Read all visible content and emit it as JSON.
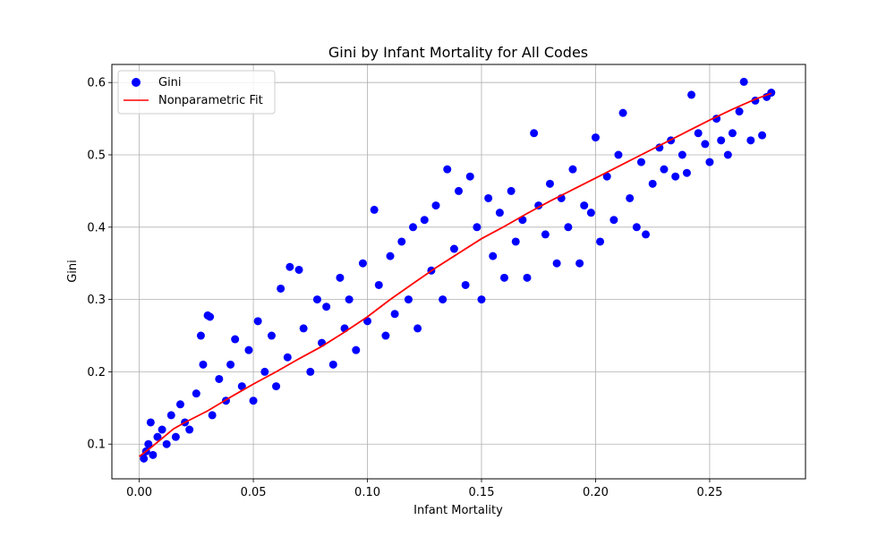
{
  "chart_data": {
    "type": "scatter",
    "title": "Gini by Infant Mortality for All Codes",
    "xlabel": "Infant Mortality",
    "ylabel": "Gini",
    "xlim": [
      -0.012,
      0.292
    ],
    "ylim": [
      0.052,
      0.625
    ],
    "xticks": [
      0.0,
      0.05,
      0.1,
      0.15,
      0.2,
      0.25
    ],
    "xtick_labels": [
      "0.00",
      "0.05",
      "0.10",
      "0.15",
      "0.20",
      "0.25"
    ],
    "yticks": [
      0.1,
      0.2,
      0.3,
      0.4,
      0.5,
      0.6
    ],
    "ytick_labels": [
      "0.1",
      "0.2",
      "0.3",
      "0.4",
      "0.5",
      "0.6"
    ],
    "grid": true,
    "legend_position": "top-left",
    "series": [
      {
        "name": "Gini",
        "kind": "scatter",
        "color": "#0000ff",
        "points": [
          [
            0.002,
            0.08
          ],
          [
            0.003,
            0.09
          ],
          [
            0.004,
            0.1
          ],
          [
            0.005,
            0.13
          ],
          [
            0.006,
            0.085
          ],
          [
            0.008,
            0.11
          ],
          [
            0.01,
            0.12
          ],
          [
            0.012,
            0.1
          ],
          [
            0.014,
            0.14
          ],
          [
            0.016,
            0.11
          ],
          [
            0.018,
            0.155
          ],
          [
            0.02,
            0.13
          ],
          [
            0.022,
            0.12
          ],
          [
            0.025,
            0.17
          ],
          [
            0.027,
            0.25
          ],
          [
            0.028,
            0.21
          ],
          [
            0.03,
            0.278
          ],
          [
            0.031,
            0.276
          ],
          [
            0.032,
            0.14
          ],
          [
            0.035,
            0.19
          ],
          [
            0.038,
            0.16
          ],
          [
            0.04,
            0.21
          ],
          [
            0.042,
            0.245
          ],
          [
            0.045,
            0.18
          ],
          [
            0.048,
            0.23
          ],
          [
            0.05,
            0.16
          ],
          [
            0.052,
            0.27
          ],
          [
            0.055,
            0.2
          ],
          [
            0.058,
            0.25
          ],
          [
            0.06,
            0.18
          ],
          [
            0.062,
            0.315
          ],
          [
            0.065,
            0.22
          ],
          [
            0.066,
            0.345
          ],
          [
            0.07,
            0.341
          ],
          [
            0.072,
            0.26
          ],
          [
            0.075,
            0.2
          ],
          [
            0.078,
            0.3
          ],
          [
            0.08,
            0.24
          ],
          [
            0.082,
            0.29
          ],
          [
            0.085,
            0.21
          ],
          [
            0.088,
            0.33
          ],
          [
            0.09,
            0.26
          ],
          [
            0.092,
            0.3
          ],
          [
            0.095,
            0.23
          ],
          [
            0.098,
            0.35
          ],
          [
            0.1,
            0.27
          ],
          [
            0.103,
            0.424
          ],
          [
            0.105,
            0.32
          ],
          [
            0.108,
            0.25
          ],
          [
            0.11,
            0.36
          ],
          [
            0.112,
            0.28
          ],
          [
            0.115,
            0.38
          ],
          [
            0.118,
            0.3
          ],
          [
            0.12,
            0.4
          ],
          [
            0.122,
            0.26
          ],
          [
            0.125,
            0.41
          ],
          [
            0.128,
            0.34
          ],
          [
            0.13,
            0.43
          ],
          [
            0.133,
            0.3
          ],
          [
            0.135,
            0.48
          ],
          [
            0.138,
            0.37
          ],
          [
            0.14,
            0.45
          ],
          [
            0.143,
            0.32
          ],
          [
            0.145,
            0.47
          ],
          [
            0.148,
            0.4
          ],
          [
            0.15,
            0.3
          ],
          [
            0.153,
            0.44
          ],
          [
            0.155,
            0.36
          ],
          [
            0.158,
            0.42
          ],
          [
            0.16,
            0.33
          ],
          [
            0.163,
            0.45
          ],
          [
            0.165,
            0.38
          ],
          [
            0.168,
            0.41
          ],
          [
            0.17,
            0.33
          ],
          [
            0.173,
            0.53
          ],
          [
            0.175,
            0.43
          ],
          [
            0.178,
            0.39
          ],
          [
            0.18,
            0.46
          ],
          [
            0.183,
            0.35
          ],
          [
            0.185,
            0.44
          ],
          [
            0.188,
            0.4
          ],
          [
            0.19,
            0.48
          ],
          [
            0.193,
            0.35
          ],
          [
            0.195,
            0.43
          ],
          [
            0.198,
            0.42
          ],
          [
            0.2,
            0.524
          ],
          [
            0.202,
            0.38
          ],
          [
            0.205,
            0.47
          ],
          [
            0.208,
            0.41
          ],
          [
            0.21,
            0.5
          ],
          [
            0.212,
            0.558
          ],
          [
            0.215,
            0.44
          ],
          [
            0.218,
            0.4
          ],
          [
            0.22,
            0.49
          ],
          [
            0.222,
            0.39
          ],
          [
            0.225,
            0.46
          ],
          [
            0.228,
            0.51
          ],
          [
            0.23,
            0.48
          ],
          [
            0.233,
            0.52
          ],
          [
            0.235,
            0.47
          ],
          [
            0.238,
            0.5
          ],
          [
            0.24,
            0.475
          ],
          [
            0.242,
            0.583
          ],
          [
            0.245,
            0.53
          ],
          [
            0.248,
            0.515
          ],
          [
            0.25,
            0.49
          ],
          [
            0.253,
            0.55
          ],
          [
            0.255,
            0.52
          ],
          [
            0.258,
            0.5
          ],
          [
            0.26,
            0.53
          ],
          [
            0.263,
            0.56
          ],
          [
            0.265,
            0.601
          ],
          [
            0.268,
            0.52
          ],
          [
            0.27,
            0.575
          ],
          [
            0.273,
            0.527
          ],
          [
            0.275,
            0.58
          ],
          [
            0.277,
            0.586
          ]
        ]
      },
      {
        "name": "Nonparametric Fit",
        "kind": "line",
        "color": "#ff0000",
        "points": [
          [
            0.0,
            0.083
          ],
          [
            0.005,
            0.095
          ],
          [
            0.01,
            0.108
          ],
          [
            0.015,
            0.121
          ],
          [
            0.02,
            0.13
          ],
          [
            0.03,
            0.146
          ],
          [
            0.04,
            0.165
          ],
          [
            0.05,
            0.183
          ],
          [
            0.06,
            0.2
          ],
          [
            0.07,
            0.218
          ],
          [
            0.08,
            0.235
          ],
          [
            0.09,
            0.255
          ],
          [
            0.1,
            0.276
          ],
          [
            0.11,
            0.3
          ],
          [
            0.12,
            0.322
          ],
          [
            0.13,
            0.344
          ],
          [
            0.14,
            0.364
          ],
          [
            0.15,
            0.384
          ],
          [
            0.16,
            0.401
          ],
          [
            0.17,
            0.419
          ],
          [
            0.18,
            0.436
          ],
          [
            0.19,
            0.452
          ],
          [
            0.2,
            0.468
          ],
          [
            0.21,
            0.484
          ],
          [
            0.22,
            0.5
          ],
          [
            0.23,
            0.516
          ],
          [
            0.24,
            0.532
          ],
          [
            0.25,
            0.548
          ],
          [
            0.26,
            0.563
          ],
          [
            0.27,
            0.577
          ],
          [
            0.277,
            0.585
          ]
        ]
      }
    ]
  }
}
